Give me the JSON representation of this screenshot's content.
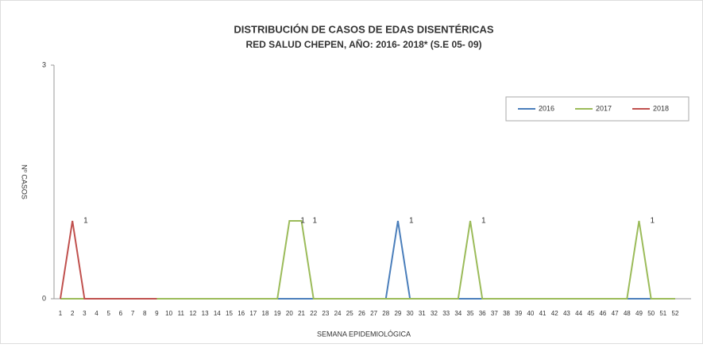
{
  "chart_data": {
    "type": "line",
    "title": "DISTRIBUCIÓN DE CASOS DE EDAS DISENTÉRICAS",
    "subtitle": "RED SALUD CHEPEN, AÑO: 2016- 2018* (S.E 05- 09)",
    "x_label": "SEMANA  EPIDEMIOLÓGICA",
    "y_label": "Nº CASOS",
    "categories": [
      1,
      2,
      3,
      4,
      5,
      6,
      7,
      8,
      9,
      10,
      11,
      12,
      13,
      14,
      15,
      16,
      17,
      18,
      19,
      20,
      21,
      22,
      23,
      24,
      25,
      26,
      27,
      28,
      29,
      30,
      31,
      32,
      33,
      34,
      35,
      36,
      37,
      38,
      39,
      40,
      41,
      42,
      43,
      44,
      45,
      46,
      47,
      48,
      49,
      50,
      51,
      52
    ],
    "ylim": [
      0,
      3
    ],
    "yticks": [
      0,
      3
    ],
    "legend": "top-right",
    "series": [
      {
        "name": "2016",
        "color": "#4a7ebb",
        "values": [
          0,
          0,
          0,
          0,
          0,
          0,
          0,
          0,
          0,
          0,
          0,
          0,
          0,
          0,
          0,
          0,
          0,
          0,
          0,
          0,
          0,
          0,
          0,
          0,
          0,
          0,
          0,
          0,
          1,
          0,
          0,
          0,
          0,
          0,
          0,
          0,
          0,
          0,
          0,
          0,
          0,
          0,
          0,
          0,
          0,
          0,
          0,
          0,
          0,
          0,
          0,
          0
        ]
      },
      {
        "name": "2017",
        "color": "#9bbb59",
        "values": [
          0,
          0,
          0,
          0,
          0,
          0,
          0,
          0,
          0,
          0,
          0,
          0,
          0,
          0,
          0,
          0,
          0,
          0,
          0,
          1,
          1,
          0,
          0,
          0,
          0,
          0,
          0,
          0,
          0,
          0,
          0,
          0,
          0,
          0,
          1,
          0,
          0,
          0,
          0,
          0,
          0,
          0,
          0,
          0,
          0,
          0,
          0,
          0,
          1,
          0,
          0,
          0
        ]
      },
      {
        "name": "2018",
        "color": "#c0504d",
        "values": [
          0,
          1,
          0,
          0,
          0,
          0,
          0,
          0,
          0,
          null,
          null,
          null,
          null,
          null,
          null,
          null,
          null,
          null,
          null,
          null,
          null,
          null,
          null,
          null,
          null,
          null,
          null,
          null,
          null,
          null,
          null,
          null,
          null,
          null,
          null,
          null,
          null,
          null,
          null,
          null,
          null,
          null,
          null,
          null,
          null,
          null,
          null,
          null,
          null,
          null,
          null,
          null
        ]
      }
    ]
  }
}
